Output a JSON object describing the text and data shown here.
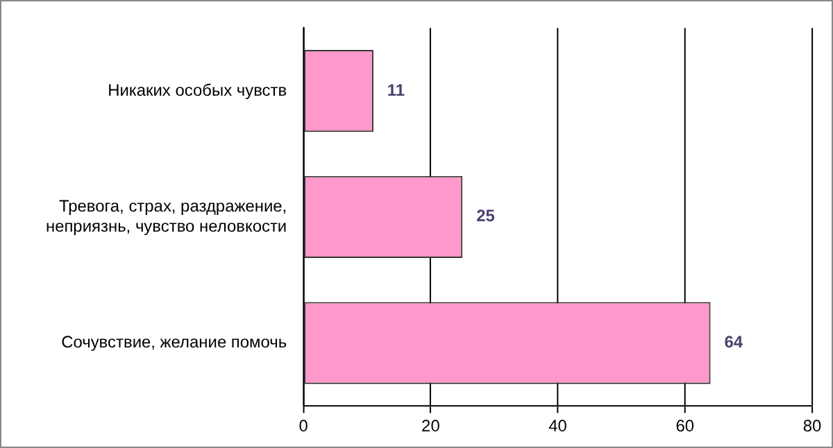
{
  "chart_data": {
    "type": "bar",
    "orientation": "horizontal",
    "categories": [
      "Никаких особых чувств",
      "Тревога, страх, раздражение, неприязнь, чувство неловкости",
      "Сочувствие, желание помочь"
    ],
    "values": [
      11,
      25,
      64
    ],
    "color": "#ff99cc",
    "xlim": [
      0,
      80
    ],
    "xticks": [
      0,
      20,
      40,
      60,
      80
    ],
    "grid": "x",
    "data_labels": true
  }
}
